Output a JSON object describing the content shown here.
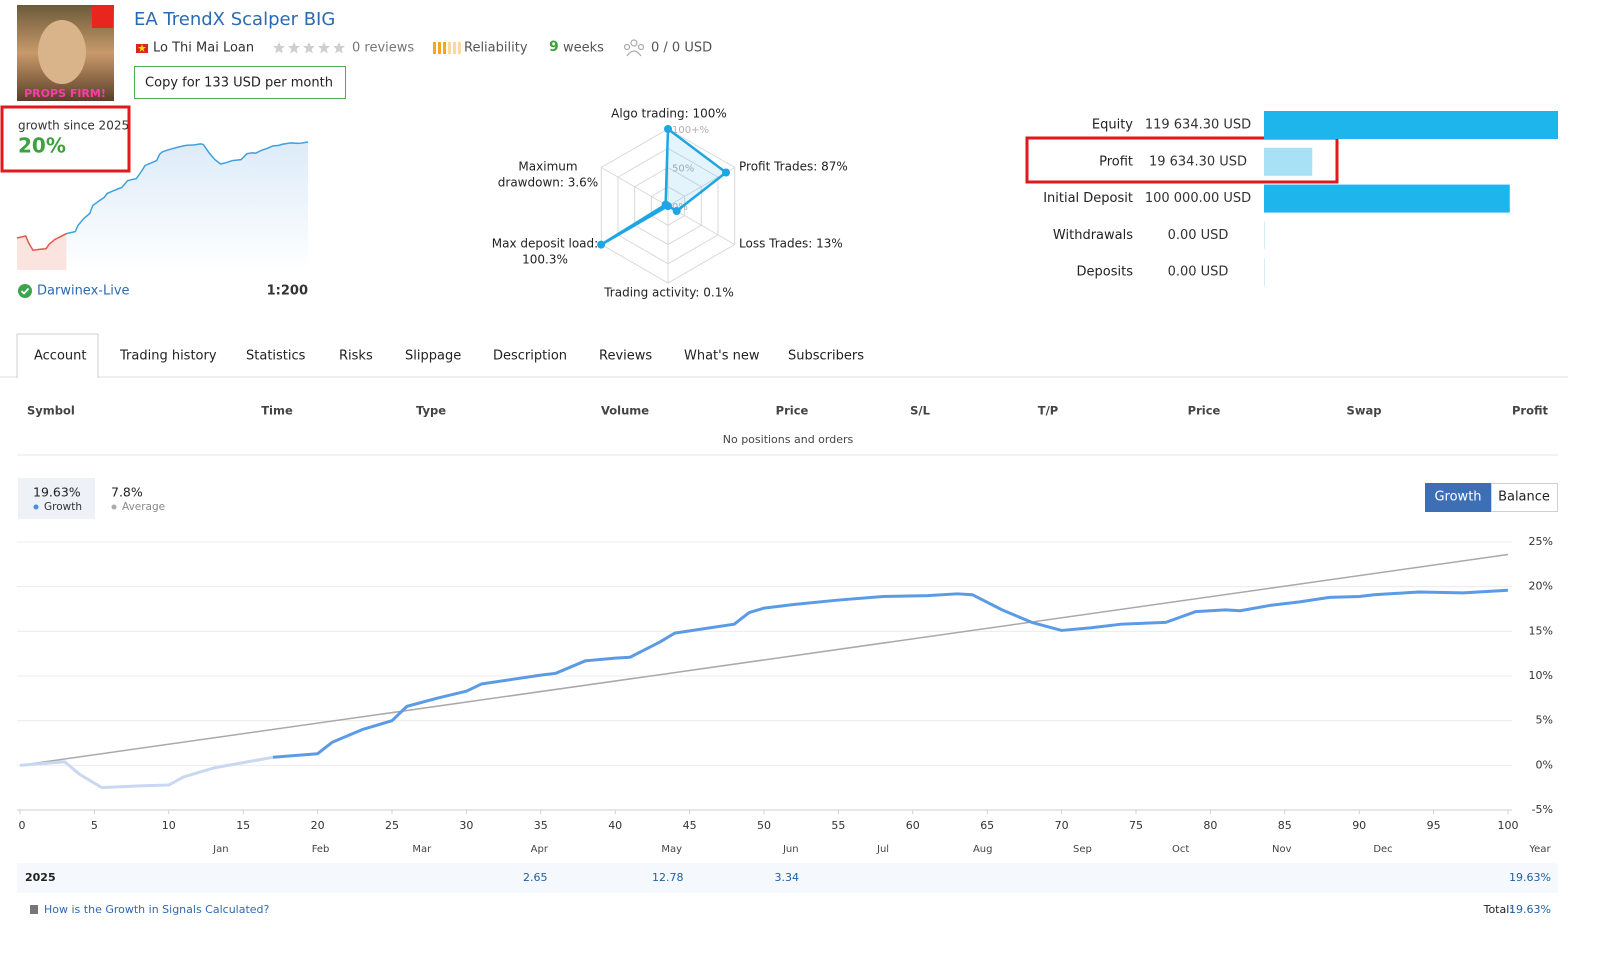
{
  "header": {
    "image_text": "PROPS FIRM!",
    "title": "EA TrendX Scalper BIG",
    "author": "Lo Thi Mai Loan",
    "reviews": "0 reviews",
    "reliability": "Reliability",
    "weeks_count": 9,
    "weeks_label": "weeks",
    "subscribers": "0 / 0 USD",
    "copy_button": "Copy for 133 USD per month"
  },
  "summary": {
    "label": "growth since 2025",
    "value": "20%",
    "broker": "Darwinex-Live",
    "leverage": "1:200"
  },
  "radar": {
    "color": "#1ea5e3",
    "axes": [
      {
        "label": [
          "Algo trading: 100%"
        ],
        "value": 100
      },
      {
        "label": [
          "Profit Trades: 87%"
        ],
        "value": 87
      },
      {
        "label": [
          "Loss Trades: 13%"
        ],
        "value": 13
      },
      {
        "label": [
          "Trading activity: 0.1%"
        ],
        "value": 0.1
      },
      {
        "label": [
          "Max deposit load:",
          "100.3%"
        ],
        "value": 100.3
      },
      {
        "label": [
          "Maximum",
          "drawdown: 3.6%"
        ],
        "value": 3.6
      }
    ],
    "scale_labels": [
      {
        "value": 100,
        "label": "100+%"
      },
      {
        "value": 50,
        "label": "50%"
      },
      {
        "value": 0,
        "label": "0%"
      }
    ]
  },
  "balance": {
    "rows": [
      {
        "label": "Equity",
        "value": 119634.3,
        "text": "119 634.30 USD",
        "color": "#1eb4ec"
      },
      {
        "label": "Profit",
        "value": 19634.3,
        "text": "19 634.30 USD",
        "color": "#a8e1f6"
      },
      {
        "label": "Initial Deposit",
        "value": 100000.0,
        "text": "100 000.00 USD",
        "color": "#1eb4ec"
      },
      {
        "label": "Withdrawals",
        "value": 0.0,
        "text": "0.00 USD",
        "color": "#1eb4ec"
      },
      {
        "label": "Deposits",
        "value": 0.0,
        "text": "0.00 USD",
        "color": "#1eb4ec"
      }
    ]
  },
  "tabs": [
    "Account",
    "Trading history",
    "Statistics",
    "Risks",
    "Slippage",
    "Description",
    "Reviews",
    "What's new",
    "Subscribers"
  ],
  "active_tab": 0,
  "positions": {
    "columns": [
      "Symbol",
      "Time",
      "Type",
      "Volume",
      "Price",
      "S/L",
      "T/P",
      "Price",
      "Swap",
      "Profit"
    ],
    "empty": "No positions and orders"
  },
  "stats": [
    {
      "value": "19.63%",
      "label": "Growth",
      "color": "#4a90e2"
    },
    {
      "value": "7.8%",
      "label": "Average",
      "color": "#aaaaaa"
    }
  ],
  "toggle": [
    "Growth",
    "Balance"
  ],
  "chart": {
    "type": "line",
    "xlim": [
      0,
      100
    ],
    "xticks": [
      0,
      5,
      10,
      15,
      20,
      25,
      30,
      35,
      40,
      45,
      50,
      55,
      60,
      65,
      70,
      75,
      80,
      85,
      90,
      95,
      100
    ],
    "ylim": [
      -5,
      25
    ],
    "yticks": [
      {
        "value": -5,
        "label": "-5%"
      },
      {
        "value": 0,
        "label": "0%"
      },
      {
        "value": 5,
        "label": "5%"
      },
      {
        "value": 10,
        "label": "10%"
      },
      {
        "value": 15,
        "label": "15%"
      },
      {
        "value": 20,
        "label": "20%"
      },
      {
        "value": 25,
        "label": "25%"
      }
    ],
    "grid": true,
    "months": [
      {
        "value": 13.5,
        "label": "Jan"
      },
      {
        "value": 20.2,
        "label": "Feb"
      },
      {
        "value": 27,
        "label": "Mar"
      },
      {
        "value": 34.9,
        "label": "Apr"
      },
      {
        "value": 43.8,
        "label": "May"
      },
      {
        "value": 51.8,
        "label": "Jun"
      },
      {
        "value": 58,
        "label": "Jul"
      },
      {
        "value": 64.7,
        "label": "Aug"
      },
      {
        "value": 71.4,
        "label": "Sep"
      },
      {
        "value": 78,
        "label": "Oct"
      },
      {
        "value": 84.8,
        "label": "Nov"
      },
      {
        "value": 91.6,
        "label": "Dec"
      }
    ],
    "year_label": "Year",
    "series": [
      {
        "color": "#c9d7f3",
        "x": [
          0,
          3,
          4,
          5.5,
          8,
          10,
          11,
          13,
          15,
          17
        ],
        "values": [
          0,
          0.4,
          -1,
          -2.5,
          -2.3,
          -2.2,
          -1.3,
          -0.3,
          0.3,
          0.9
        ]
      },
      {
        "color": "#5b9be6",
        "x": [
          17,
          20,
          21,
          23,
          25,
          26,
          28,
          30,
          31,
          33,
          35,
          36,
          38,
          40,
          41,
          43,
          44,
          46,
          48,
          49,
          50,
          52,
          55,
          58,
          61,
          63,
          64,
          66,
          68,
          70,
          72,
          74,
          77,
          79,
          81,
          82,
          84,
          86,
          88,
          90,
          91,
          94,
          97,
          100
        ],
        "values": [
          0.9,
          1.3,
          2.6,
          4.0,
          5.0,
          6.6,
          7.5,
          8.3,
          9.1,
          9.6,
          10.1,
          10.3,
          11.7,
          12.0,
          12.1,
          13.8,
          14.8,
          15.3,
          15.8,
          17.1,
          17.6,
          18.0,
          18.5,
          18.9,
          19.0,
          19.2,
          19.1,
          17.4,
          16.0,
          15.1,
          15.4,
          15.8,
          16.0,
          17.2,
          17.4,
          17.3,
          17.9,
          18.3,
          18.8,
          18.9,
          19.1,
          19.4,
          19.3,
          19.6
        ]
      },
      {
        "color": "#a9a9a9",
        "x": [
          0,
          100
        ],
        "values": [
          0,
          23.6
        ]
      }
    ]
  },
  "year_row": {
    "year": "2025",
    "values": [
      null,
      null,
      null,
      2.65,
      12.78,
      3.34,
      null,
      null,
      null,
      null,
      null,
      null
    ],
    "total": "19.63%"
  },
  "footer": {
    "link": "How is the Growth in Signals Calculated?",
    "total_label": "Total:",
    "total": "19.63%"
  }
}
